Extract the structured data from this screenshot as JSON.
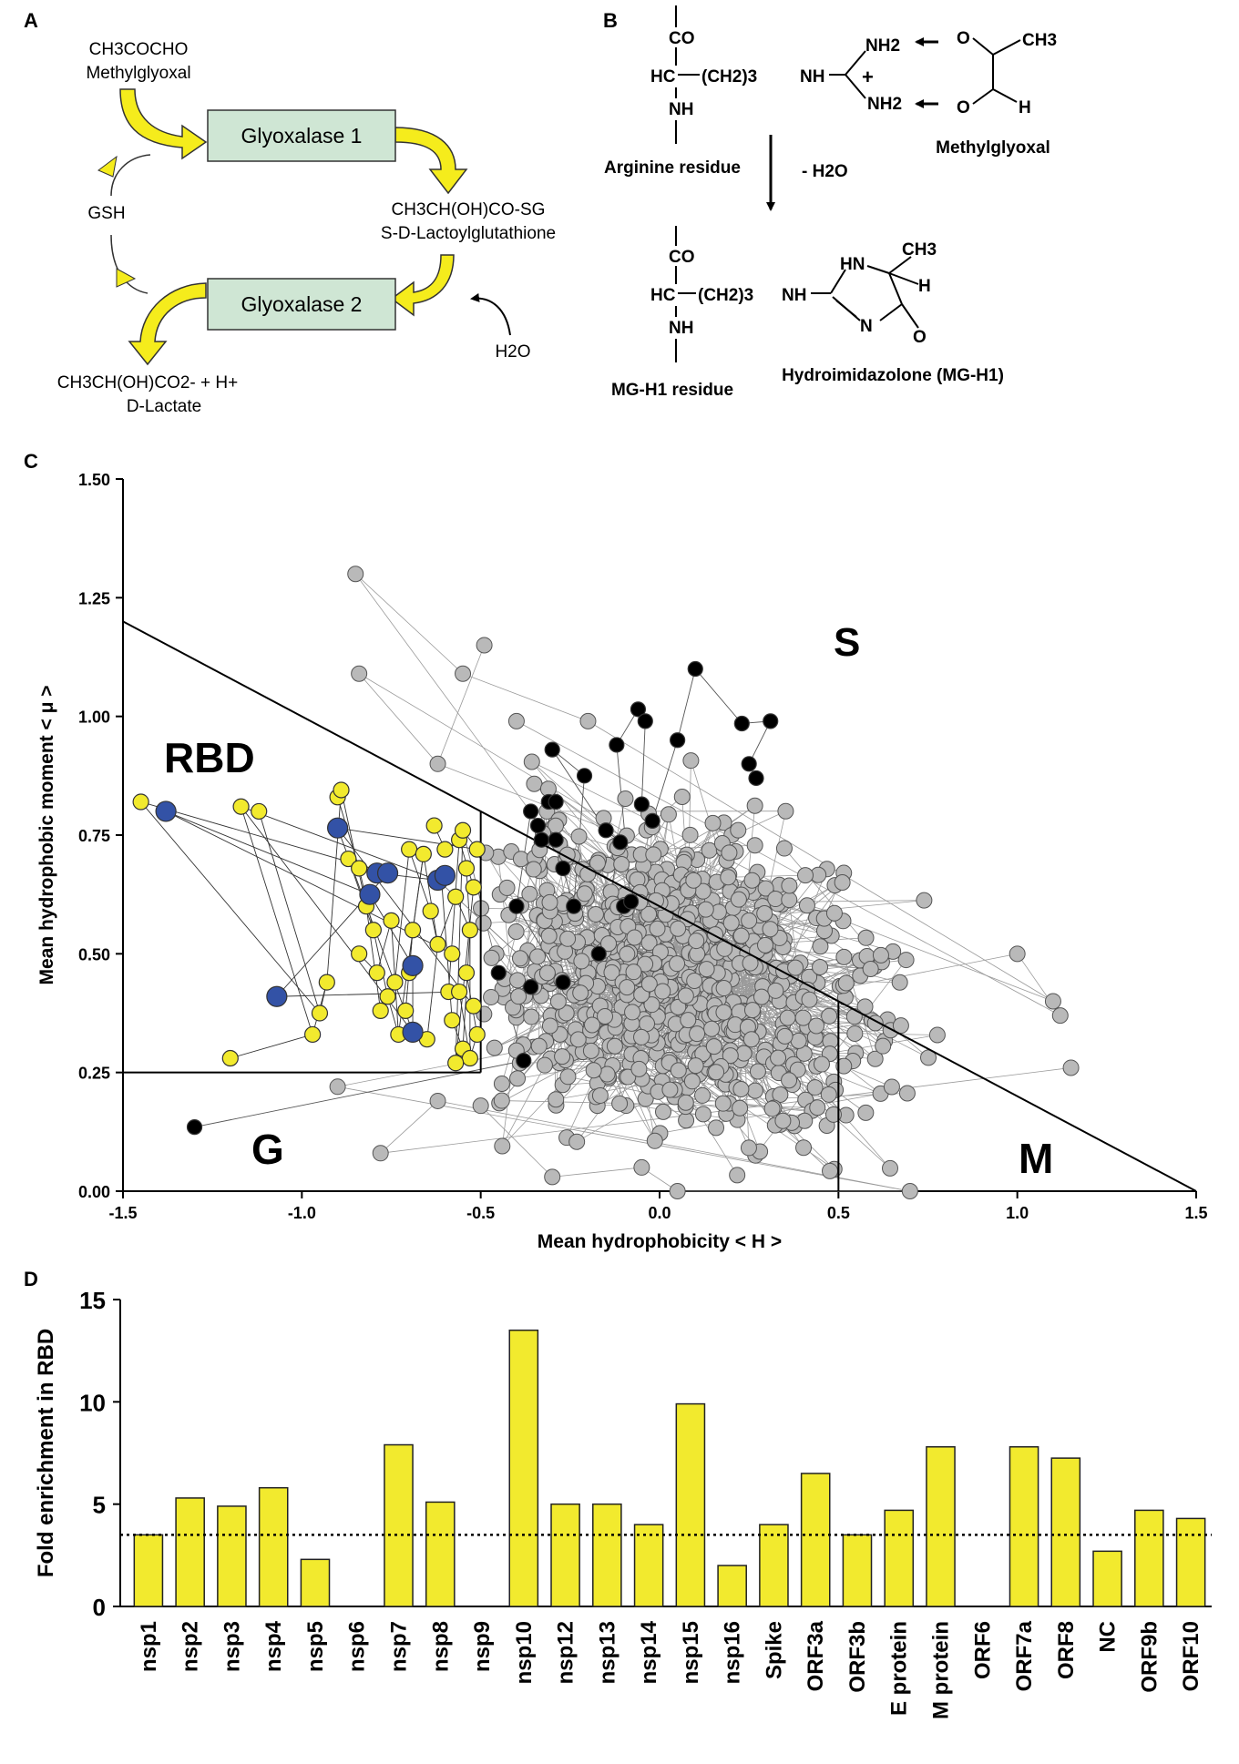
{
  "panelA": {
    "label": "A",
    "substrate_formula": "CH3COCHO",
    "substrate_name": "Methylglyoxal",
    "enzyme1": "Glyoxalase 1",
    "enzyme2": "Glyoxalase 2",
    "intermediate_formula": "CH3CH(OH)CO-SG",
    "intermediate_name": "S-D-Lactoylglutathione",
    "cofactor": "GSH",
    "water": "H2O",
    "product_formula": "CH3CH(OH)CO2- + H+",
    "product_name": "D-Lactate"
  },
  "panelB": {
    "label": "B",
    "co": "CO",
    "hc": "HC",
    "ch2": "(CH2)3",
    "nh": "NH",
    "nh2": "NH2",
    "plus": "+",
    "o": "O",
    "h": "H",
    "hn": "HN",
    "n": "N",
    "ch3": "CH3",
    "arginine_label": "Arginine residue",
    "methylglyoxal_label": "Methylglyoxal",
    "loss": "- H2O",
    "mgh1_label": "MG-H1 residue",
    "hydroimidazolone_label": "Hydroimidazolone (MG-H1)"
  },
  "panelC": {
    "label": "C",
    "region_labels": {
      "rbd": "RBD",
      "s": "S",
      "g": "G",
      "m": "M"
    }
  },
  "panelD": {
    "label": "D"
  },
  "chart_data": [
    {
      "type": "scatter",
      "title": "",
      "xlabel": "Mean hydrophobicity < H >",
      "ylabel": "Mean hydrophobic moment < μ >",
      "xlim": [
        -1.5,
        1.5
      ],
      "ylim": [
        0,
        1.5
      ],
      "xticks": [
        "-1.5",
        "-1.0",
        "-0.5",
        "0.0",
        "0.5",
        "1.0",
        "1.5"
      ],
      "yticks": [
        "0.00",
        "0.25",
        "0.50",
        "0.75",
        "1.00",
        "1.25",
        "1.50"
      ],
      "boundaries": {
        "diagonal": [
          [
            -1.5,
            1.2
          ],
          [
            1.5,
            0.0
          ]
        ],
        "rbd_box": {
          "h_max": -0.5,
          "mu_min": 0.25
        },
        "vertical_at_h": 0.5
      },
      "series": [
        {
          "name": "black",
          "color": "#000000",
          "points": [
            [
              -1.3,
              0.135
            ],
            [
              -0.38,
              0.275
            ],
            [
              -0.45,
              0.46
            ],
            [
              -0.36,
              0.43
            ],
            [
              -0.27,
              0.44
            ],
            [
              -0.4,
              0.6
            ],
            [
              -0.36,
              0.8
            ],
            [
              -0.34,
              0.77
            ],
            [
              -0.31,
              0.82
            ],
            [
              -0.29,
              0.82
            ],
            [
              -0.33,
              0.74
            ],
            [
              -0.29,
              0.74
            ],
            [
              -0.27,
              0.68
            ],
            [
              -0.24,
              0.6
            ],
            [
              -0.21,
              0.875
            ],
            [
              -0.3,
              0.93
            ],
            [
              -0.15,
              0.76
            ],
            [
              -0.11,
              0.735
            ],
            [
              -0.17,
              0.5
            ],
            [
              -0.1,
              0.6
            ],
            [
              -0.08,
              0.61
            ],
            [
              -0.12,
              0.94
            ],
            [
              -0.06,
              1.015
            ],
            [
              -0.04,
              0.99
            ],
            [
              -0.05,
              0.815
            ],
            [
              -0.02,
              0.78
            ],
            [
              0.05,
              0.95
            ],
            [
              0.1,
              1.1
            ],
            [
              0.23,
              0.985
            ],
            [
              0.31,
              0.99
            ],
            [
              0.25,
              0.9
            ],
            [
              0.27,
              0.87
            ]
          ]
        },
        {
          "name": "yellow",
          "color": "#f2ea2e",
          "points": [
            [
              -1.45,
              0.82
            ],
            [
              -1.2,
              0.28
            ],
            [
              -1.17,
              0.81
            ],
            [
              -1.12,
              0.8
            ],
            [
              -0.97,
              0.33
            ],
            [
              -0.95,
              0.375
            ],
            [
              -0.93,
              0.44
            ],
            [
              -0.9,
              0.83
            ],
            [
              -0.89,
              0.845
            ],
            [
              -0.87,
              0.7
            ],
            [
              -0.84,
              0.68
            ],
            [
              -0.84,
              0.5
            ],
            [
              -0.82,
              0.6
            ],
            [
              -0.8,
              0.55
            ],
            [
              -0.79,
              0.46
            ],
            [
              -0.78,
              0.38
            ],
            [
              -0.76,
              0.41
            ],
            [
              -0.75,
              0.57
            ],
            [
              -0.74,
              0.44
            ],
            [
              -0.73,
              0.33
            ],
            [
              -0.71,
              0.38
            ],
            [
              -0.7,
              0.46
            ],
            [
              -0.7,
              0.72
            ],
            [
              -0.69,
              0.55
            ],
            [
              -0.66,
              0.71
            ],
            [
              -0.65,
              0.32
            ],
            [
              -0.64,
              0.59
            ],
            [
              -0.63,
              0.77
            ],
            [
              -0.62,
              0.52
            ],
            [
              -0.61,
              0.66
            ],
            [
              -0.6,
              0.72
            ],
            [
              -0.59,
              0.42
            ],
            [
              -0.58,
              0.36
            ],
            [
              -0.57,
              0.62
            ],
            [
              -0.56,
              0.74
            ],
            [
              -0.55,
              0.3
            ],
            [
              -0.54,
              0.46
            ],
            [
              -0.54,
              0.68
            ],
            [
              -0.53,
              0.55
            ],
            [
              -0.52,
              0.64
            ],
            [
              -0.51,
              0.33
            ],
            [
              -0.53,
              0.28
            ],
            [
              -0.57,
              0.27
            ],
            [
              -0.58,
              0.5
            ],
            [
              -0.55,
              0.76
            ],
            [
              -0.56,
              0.42
            ],
            [
              -0.51,
              0.72
            ],
            [
              -0.52,
              0.39
            ]
          ]
        },
        {
          "name": "blue",
          "color": "#3352a6",
          "points": [
            [
              -1.38,
              0.8
            ],
            [
              -1.07,
              0.41
            ],
            [
              -0.9,
              0.765
            ],
            [
              -0.81,
              0.625
            ],
            [
              -0.79,
              0.67
            ],
            [
              -0.76,
              0.67
            ],
            [
              -0.69,
              0.475
            ],
            [
              -0.69,
              0.335
            ],
            [
              -0.62,
              0.655
            ],
            [
              -0.6,
              0.665
            ]
          ]
        }
      ],
      "gray_cloud": {
        "name": "gray",
        "color": "#b9b9b9",
        "approx_count": 800,
        "h_range": [
          -1.0,
          1.15
        ],
        "mu_range": [
          0.0,
          1.3
        ]
      }
    },
    {
      "type": "bar",
      "title": "",
      "xlabel": "",
      "ylabel": "Fold enrichment in RBD",
      "ylim": [
        0,
        15
      ],
      "yticks": [
        "0",
        "5",
        "10",
        "15"
      ],
      "reference_line": 3.5,
      "categories": [
        "nsp1",
        "nsp2",
        "nsp3",
        "nsp4",
        "nsp5",
        "nsp6",
        "nsp7",
        "nsp8",
        "nsp9",
        "nsp10",
        "nsp12",
        "nsp13",
        "nsp14",
        "nsp15",
        "nsp16",
        "Spike",
        "ORF3a",
        "ORF3b",
        "E protein",
        "M protein",
        "ORF6",
        "ORF7a",
        "ORF8",
        "NC",
        "ORF9b",
        "ORF10"
      ],
      "values": [
        3.5,
        5.3,
        4.9,
        5.8,
        2.3,
        0,
        7.9,
        5.1,
        0,
        13.5,
        5.0,
        5.0,
        4.0,
        9.9,
        2.0,
        4.0,
        6.5,
        3.5,
        4.7,
        7.8,
        0,
        7.8,
        7.25,
        2.7,
        4.7,
        4.3
      ],
      "color": "#f2ea2e"
    }
  ]
}
